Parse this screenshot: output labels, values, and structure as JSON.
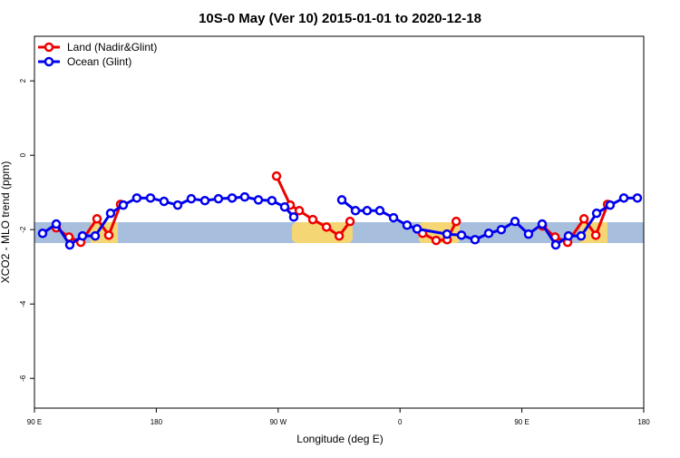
{
  "chart_data": {
    "type": "line",
    "title": "10S-0 May (Ver 10)   2015-01-01 to 2020-12-18",
    "x_label": "Longitude (deg E)",
    "y_label": "XCO2 - MLO trend (ppm)",
    "xlim": [
      90,
      540
    ],
    "ylim": [
      -6.8,
      3.2
    ],
    "xticks": [
      {
        "value": 90,
        "label": "90 E"
      },
      180,
      {
        "value": 270,
        "label": "90 W"
      },
      {
        "value": 360,
        "label": "0"
      },
      {
        "value": 450,
        "label": "90 E"
      },
      {
        "value": 540,
        "label": "180"
      }
    ],
    "yticks": [
      2,
      0,
      -2,
      -4,
      -6
    ],
    "legend": "top-left",
    "series": [
      {
        "name": "Land (Nadir&Glint)",
        "color": "#ee0000",
        "x": [
          106.1,
          115.5,
          124.2,
          136.2,
          144.9,
          153.6,
          null,
          268.8,
          278.9,
          285.6,
          295.6,
          305.7,
          315.1,
          323.1,
          null,
          376.7,
          386.7,
          394.8,
          401.5,
          null,
          465.2,
          474.5,
          483.8,
          495.9,
          504.6,
          513.3
        ],
        "values": [
          -1.95,
          -2.2,
          -2.34,
          -1.71,
          -2.15,
          -1.32,
          null,
          -0.56,
          -1.34,
          -1.49,
          -1.73,
          -1.93,
          -2.17,
          -1.78,
          null,
          -2.1,
          -2.29,
          -2.27,
          -1.78,
          null,
          -1.9,
          -2.2,
          -2.34,
          -1.71,
          -2.15,
          -1.32
        ]
      },
      {
        "name": "Ocean (Glint)",
        "color": "#0000ee",
        "x": [
          96.0,
          106.1,
          116.1,
          125.5,
          134.9,
          146.2,
          155.6,
          165.6,
          175.7,
          185.7,
          195.8,
          205.8,
          215.9,
          225.9,
          236.0,
          245.3,
          255.4,
          265.4,
          274.8,
          281.5,
          null,
          317.0,
          327.1,
          335.7,
          345.1,
          355.2,
          365.2,
          372.6,
          394.7,
          405.4,
          415.4,
          425.5,
          434.8,
          444.9,
          454.9,
          465.0,
          475.0,
          484.4,
          493.8,
          505.2,
          515.2,
          525.3,
          535.3
        ],
        "values": [
          -2.1,
          -1.85,
          -2.41,
          -2.17,
          -2.17,
          -1.56,
          -1.34,
          -1.15,
          -1.15,
          -1.24,
          -1.34,
          -1.17,
          -1.22,
          -1.17,
          -1.15,
          -1.12,
          -1.2,
          -1.22,
          -1.39,
          -1.66,
          null,
          -1.2,
          -1.49,
          -1.49,
          -1.49,
          -1.68,
          -1.88,
          -1.98,
          -2.12,
          -2.15,
          -2.27,
          -2.1,
          -2.0,
          -1.78,
          -2.12,
          -1.85,
          -2.41,
          -2.17,
          -2.17,
          -1.56,
          -1.34,
          -1.15,
          -1.15
        ]
      }
    ]
  }
}
